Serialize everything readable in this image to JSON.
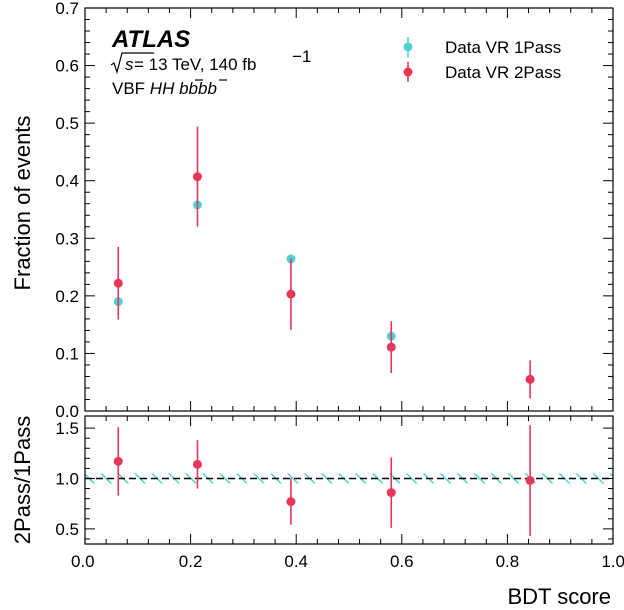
{
  "chart_data": [
    {
      "type": "scatter",
      "panel": "main",
      "ylabel": "Fraction of events",
      "xlim": [
        0.0,
        1.0
      ],
      "ylim": [
        0.0,
        0.7
      ],
      "yticks": [
        "0.0",
        "0.1",
        "0.2",
        "0.3",
        "0.4",
        "0.5",
        "0.6",
        "0.7"
      ],
      "series": [
        {
          "name": "Data VR 1Pass",
          "color": "#4dd2d6",
          "x": [
            0.063,
            0.213,
            0.39,
            0.58,
            0.843
          ],
          "y": [
            0.19,
            0.358,
            0.264,
            0.13,
            0.055
          ],
          "err": [
            0.0,
            0.0,
            0.0,
            0.0,
            0.0
          ]
        },
        {
          "name": "Data VR 2Pass",
          "color": "#e8365a",
          "x": [
            0.063,
            0.213,
            0.39,
            0.58,
            0.843
          ],
          "y": [
            0.222,
            0.407,
            0.203,
            0.111,
            0.055
          ],
          "err": [
            0.063,
            0.087,
            0.062,
            0.045,
            0.033
          ]
        }
      ],
      "annotations": {
        "experiment": "ATLAS",
        "sqrt_s": "s",
        "energy": " = 13 TeV, 140 fb",
        "lumi_exp": "−1",
        "channel_prefix": "VBF ",
        "channel": "HH bbbb"
      }
    },
    {
      "type": "scatter",
      "panel": "ratio",
      "xlabel": "BDT score",
      "ylabel": "2Pass/1Pass",
      "xlim": [
        0.0,
        1.0
      ],
      "ylim": [
        0.35,
        1.62
      ],
      "xticks": [
        "0.0",
        "0.2",
        "0.4",
        "0.6",
        "0.8",
        "1.0"
      ],
      "yticks": [
        "0.5",
        "1.0",
        "1.5"
      ],
      "reference_line": 1.0,
      "band_color": "#4dd2d6",
      "band_half_width": 0.05,
      "series": [
        {
          "name": "2Pass/1Pass",
          "color": "#e8365a",
          "x": [
            0.063,
            0.213,
            0.39,
            0.58,
            0.843
          ],
          "y": [
            1.17,
            1.14,
            0.77,
            0.86,
            0.98
          ],
          "err": [
            0.34,
            0.24,
            0.23,
            0.35,
            0.55
          ]
        }
      ]
    }
  ]
}
